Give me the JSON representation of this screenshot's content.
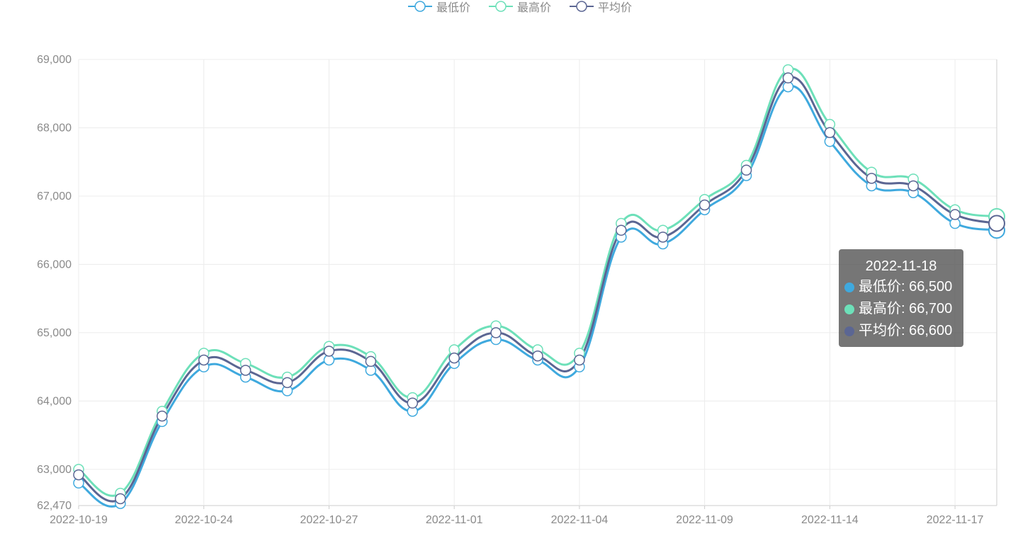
{
  "legend": {
    "items": [
      {
        "label": "最低价",
        "color": "#3fa9de",
        "icon": "circle-line-icon"
      },
      {
        "label": "最高价",
        "color": "#6de0b9",
        "icon": "circle-line-icon"
      },
      {
        "label": "平均价",
        "color": "#5b6693",
        "icon": "circle-line-icon"
      }
    ]
  },
  "tooltip": {
    "date": "2022-11-18",
    "rows": [
      {
        "label": "最低价: 66,500",
        "color": "#3fa9de"
      },
      {
        "label": "最高价: 66,700",
        "color": "#6de0b9"
      },
      {
        "label": "平均价: 66,600",
        "color": "#5b6693"
      }
    ]
  },
  "chart_data": {
    "type": "line",
    "smooth": true,
    "grid": true,
    "legend_position": "top-center",
    "x": [
      "2022-10-19",
      "2022-10-20",
      "2022-10-21",
      "2022-10-24",
      "2022-10-25",
      "2022-10-26",
      "2022-10-27",
      "2022-10-28",
      "2022-10-31",
      "2022-11-01",
      "2022-11-02",
      "2022-11-03",
      "2022-11-04",
      "2022-11-07",
      "2022-11-08",
      "2022-11-09",
      "2022-11-10",
      "2022-11-11",
      "2022-11-14",
      "2022-11-15",
      "2022-11-16",
      "2022-11-17",
      "2022-11-18"
    ],
    "x_tick_labels": [
      "2022-10-19",
      "2022-10-24",
      "2022-10-27",
      "2022-11-01",
      "2022-11-04",
      "2022-11-09",
      "2022-11-14",
      "2022-11-17"
    ],
    "x_tick_indices": [
      0,
      3,
      6,
      9,
      12,
      15,
      18,
      21
    ],
    "ylim": [
      62470,
      69000
    ],
    "y_ticks": [
      62470,
      63000,
      64000,
      65000,
      66000,
      67000,
      68000,
      69000
    ],
    "y_tick_labels": [
      "62,470",
      "63,000",
      "64,000",
      "65,000",
      "66,000",
      "67,000",
      "68,000",
      "69,000"
    ],
    "series": [
      {
        "name": "最低价",
        "color": "#3fa9de",
        "values": [
          62800,
          62500,
          63700,
          64500,
          64350,
          64150,
          64600,
          64450,
          63850,
          64550,
          64900,
          64600,
          64500,
          66400,
          66300,
          66800,
          67300,
          68600,
          67800,
          67150,
          67050,
          66600,
          66500
        ]
      },
      {
        "name": "最高价",
        "color": "#6de0b9",
        "values": [
          63000,
          62650,
          63850,
          64700,
          64550,
          64350,
          64800,
          64650,
          64050,
          64750,
          65100,
          64750,
          64700,
          66600,
          66500,
          66950,
          67450,
          68850,
          68050,
          67350,
          67250,
          66800,
          66700
        ]
      },
      {
        "name": "平均价",
        "color": "#5b6693",
        "values": [
          62920,
          62570,
          63780,
          64600,
          64450,
          64270,
          64730,
          64580,
          63970,
          64630,
          65000,
          64660,
          64600,
          66500,
          66400,
          66870,
          67380,
          68730,
          67930,
          67260,
          67150,
          66730,
          66600
        ]
      }
    ],
    "highlight_index": 22
  }
}
